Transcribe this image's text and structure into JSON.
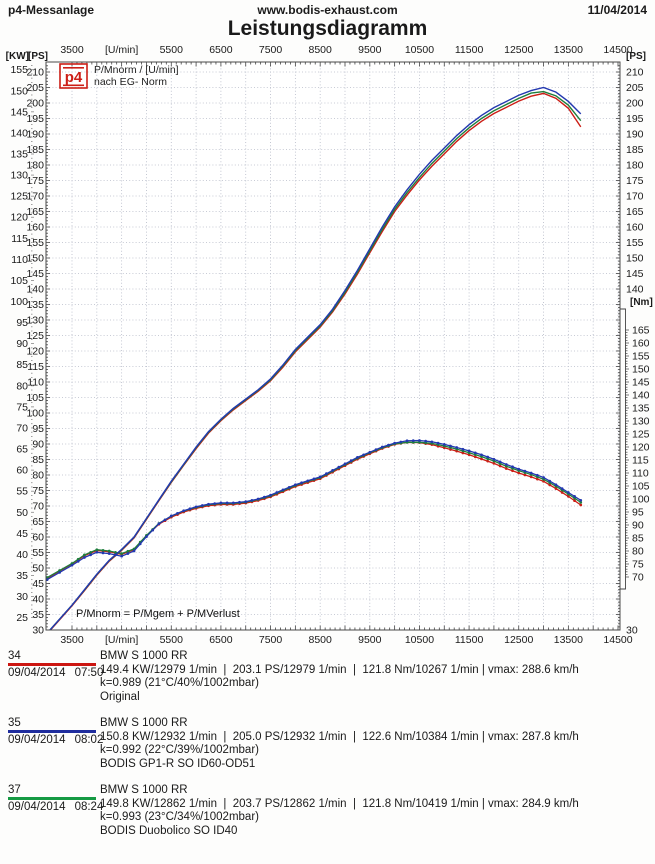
{
  "header": {
    "left": "p4-Messanlage",
    "center": "www.bodis-exhaust.com",
    "right": "11/04/2014",
    "title": "Leistungsdiagramm"
  },
  "chart": {
    "logo_text": "p4",
    "legend_line1": "P/Mnorm / [U/min]",
    "legend_line2": "nach EG- Norm",
    "formula": "P/Mnorm = P/Mgem + P/MVerlust",
    "axis_units": {
      "left_kw": "[KW]",
      "left_ps": "[PS]",
      "right_ps": "[PS]",
      "right_nm": "[Nm]",
      "x": "[U/min]"
    },
    "grid_color": "#b6bac8",
    "axis_color": "#4a4a4a"
  },
  "chart_data": {
    "type": "line",
    "title": "Leistungsdiagramm",
    "x_axis": {
      "label": "[U/min]",
      "unit": "[U/min]",
      "min": 3500,
      "max": 14500,
      "tick_step": 1000,
      "grid_step": 500,
      "unit_replaces_tick": 4500
    },
    "y_axis_power": {
      "units": [
        "[KW]",
        "[PS]"
      ],
      "ps_min": 30,
      "ps_max": 210,
      "ps_step": 5,
      "kw_min": 25,
      "kw_max": 155,
      "kw_step": 5
    },
    "y_axis_torque": {
      "unit": "[Nm]",
      "min": 70,
      "max": 165,
      "step": 5
    },
    "right_ps_labels_shown": [
      140,
      145,
      150,
      155,
      160,
      165,
      170,
      175,
      180,
      185,
      190,
      195,
      200,
      205,
      210,
      30
    ],
    "grid": true,
    "legend_position": "top-left",
    "rpm": [
      3000,
      3500,
      3750,
      4000,
      4250,
      4500,
      4750,
      5000,
      5250,
      5500,
      5750,
      6000,
      6250,
      6500,
      6750,
      7000,
      7250,
      7500,
      7750,
      8000,
      8250,
      8500,
      8750,
      9000,
      9250,
      9500,
      9750,
      10000,
      10250,
      10500,
      10750,
      11000,
      11250,
      11500,
      11750,
      12000,
      12250,
      12500,
      12750,
      13000,
      13250,
      13500,
      13750
    ],
    "series": [
      {
        "id": "34",
        "name": "34 Original",
        "color": "#cc1e16",
        "max_power_ps": 203.1,
        "max_power_rpm": 12979,
        "max_torque_nm": 121.8,
        "max_torque_rpm": 10267,
        "power_ps": [
          28.8,
          37.8,
          42.7,
          47.7,
          52.2,
          55.7,
          59.7,
          65.7,
          71.7,
          77.6,
          83.1,
          88.5,
          93.5,
          97.5,
          101,
          104,
          107,
          110.4,
          114.8,
          119.7,
          123.7,
          127.7,
          132.6,
          138.4,
          144.8,
          151.7,
          158.5,
          165,
          170.3,
          175.2,
          179.6,
          183.6,
          187.6,
          191.1,
          194.1,
          196.6,
          198.6,
          200.6,
          202.2,
          203.1,
          201.5,
          198.3,
          192.3
        ],
        "torque_nm": [
          69.5,
          75,
          78.2,
          80.2,
          79.7,
          78.7,
          80.5,
          85.8,
          90.3,
          93,
          95,
          96.4,
          97.4,
          97.9,
          97.9,
          98.4,
          99.4,
          100.8,
          102.8,
          104.8,
          106.3,
          107.8,
          110.3,
          112.8,
          115.3,
          117.4,
          119.4,
          121,
          121.8,
          121.7,
          120.9,
          119.7,
          118.4,
          117,
          115.4,
          113.7,
          111.7,
          110,
          108.5,
          106.8,
          104,
          101,
          97.7
        ]
      },
      {
        "id": "37",
        "name": "37 BODIS Duobolico SO ID40",
        "color": "#1e7e3c",
        "max_power_ps": 203.7,
        "max_power_rpm": 12862,
        "max_torque_nm": 121.8,
        "max_torque_rpm": 10419,
        "power_ps": [
          29,
          38,
          42.9,
          47.9,
          52.4,
          55.9,
          59.9,
          65.9,
          71.9,
          77.8,
          83.3,
          88.8,
          93.8,
          97.8,
          101.3,
          104.3,
          107.3,
          110.7,
          115.2,
          120.1,
          124.1,
          128.1,
          133,
          138.9,
          145.4,
          152.3,
          159.2,
          165.7,
          171.1,
          176,
          180.5,
          184.5,
          188.5,
          192,
          195,
          197.5,
          199.5,
          201.5,
          203.2,
          203.7,
          202.3,
          199.3,
          194.3
        ],
        "torque_nm": [
          69.8,
          75.2,
          78.5,
          80.5,
          80,
          79,
          80.8,
          86,
          90.6,
          93.4,
          95.4,
          96.8,
          97.8,
          98.3,
          98.3,
          98.8,
          99.8,
          101.2,
          103.2,
          105.2,
          106.8,
          108.2,
          110.7,
          113.2,
          115.7,
          117.8,
          119.7,
          121.2,
          121.8,
          121.8,
          121.4,
          120.4,
          119.2,
          117.8,
          116.3,
          114.6,
          112.6,
          110.9,
          109.4,
          107.6,
          104.9,
          101.9,
          98.7
        ]
      },
      {
        "id": "35",
        "name": "35 BODIS GP1-R SO ID60-OD51",
        "color": "#2338b0",
        "max_power_ps": 205.0,
        "max_power_rpm": 12932,
        "max_torque_nm": 122.6,
        "max_torque_rpm": 10384,
        "power_ps": [
          29,
          38,
          43,
          48,
          52.5,
          56,
          60,
          66,
          72,
          78,
          83.5,
          89,
          94,
          98,
          101.5,
          104.5,
          107.5,
          111,
          115.5,
          120.5,
          124.5,
          128.5,
          133.5,
          139.5,
          146,
          153,
          160,
          166.5,
          172,
          177,
          181.5,
          185.5,
          189.5,
          193,
          196,
          198.5,
          200.5,
          202.5,
          204,
          205,
          203.5,
          200.5,
          196.5
        ],
        "torque_nm": [
          69,
          74.5,
          77.5,
          79.5,
          79,
          78,
          80,
          85.5,
          90.5,
          93.5,
          95.5,
          97,
          98,
          98.5,
          98.5,
          99,
          100,
          101.5,
          103.5,
          105.5,
          107,
          108.5,
          111,
          113.5,
          116,
          118,
          120,
          121.5,
          122.4,
          122.5,
          122,
          121,
          119.8,
          118.5,
          117,
          115.3,
          113.3,
          111.5,
          110,
          108.3,
          105.5,
          102.5,
          99.5
        ]
      }
    ]
  },
  "runs": [
    {
      "number": "34",
      "date": "09/04/2014",
      "time": "07:50",
      "color": "#cc1611",
      "model": "BMW S 1000 RR",
      "stats": "149.4 KW/12979 1/min  |  203.1 PS/12979 1/min  |  121.8 Nm/10267 1/min | vmax: 288.6 km/h",
      "k_line": "k=0.989 (21°C/40%/1002mbar)",
      "name": "Original"
    },
    {
      "number": "35",
      "date": "09/04/2014",
      "time": "08:02",
      "color": "#1f2d9e",
      "model": "BMW S 1000 RR",
      "stats": "150.8 KW/12932 1/min  |  205.0 PS/12932 1/min  |  122.6 Nm/10384 1/min | vmax: 287.8 km/h",
      "k_line": "k=0.992 (22°C/39%/1002mbar)",
      "name": "BODIS GP1-R SO ID60-OD51"
    },
    {
      "number": "37",
      "date": "09/04/2014",
      "time": "08:24",
      "color": "#159a43",
      "model": "BMW S 1000 RR",
      "stats": "149.8 KW/12862 1/min  |  203.7 PS/12862 1/min  |  121.8 Nm/10419 1/min | vmax: 284.9 km/h",
      "k_line": "k=0.993 (23°C/34%/1002mbar)",
      "name": "BODIS Duobolico SO ID40"
    }
  ]
}
